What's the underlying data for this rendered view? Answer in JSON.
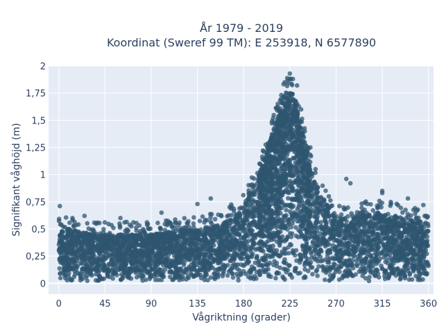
{
  "chart_data": {
    "type": "scatter",
    "title_line1": "År 1979 - 2019",
    "title_line2": "Koordinat (Sweref 99 TM): E 253918, N 6577890",
    "xlabel": "Vågriktning (grader)",
    "ylabel": "Signifikant våghöjd (m)",
    "xlim": [
      -10,
      365
    ],
    "ylim": [
      -0.1,
      2
    ],
    "x_ticks": [
      0,
      45,
      90,
      135,
      180,
      225,
      270,
      315,
      360
    ],
    "x_tick_labels": [
      "0",
      "45",
      "90",
      "135",
      "180",
      "225",
      "270",
      "315",
      "360"
    ],
    "y_ticks": [
      0,
      0.25,
      0.5,
      0.75,
      1,
      1.25,
      1.5,
      1.75,
      2
    ],
    "y_tick_labels": [
      "0",
      "0,25",
      "0,5",
      "0,75",
      "1",
      "1,25",
      "1,5",
      "1,75",
      "2"
    ],
    "grid": true,
    "marker_color": "#2f5670",
    "plot_background": "#e5ecf6",
    "envelope": {
      "description_values": "approximate upper envelope of dense point cloud (direction deg, wave height m)",
      "x": [
        0,
        45,
        90,
        135,
        160,
        180,
        195,
        210,
        220,
        225,
        230,
        240,
        250,
        270,
        315,
        360
      ],
      "y_upper": [
        0.5,
        0.45,
        0.45,
        0.5,
        0.55,
        0.7,
        1.0,
        1.45,
        1.75,
        1.8,
        1.7,
        1.3,
        0.9,
        0.6,
        0.65,
        0.55
      ]
    },
    "outliers": [
      {
        "x": 1,
        "y": 0.71
      },
      {
        "x": 225,
        "y": 1.93
      },
      {
        "x": 220,
        "y": 1.85
      },
      {
        "x": 228,
        "y": 1.88
      },
      {
        "x": 232,
        "y": 1.82
      },
      {
        "x": 215,
        "y": 1.58
      },
      {
        "x": 236,
        "y": 1.6
      },
      {
        "x": 203,
        "y": 1.25
      },
      {
        "x": 245,
        "y": 1.25
      },
      {
        "x": 250,
        "y": 1.05
      },
      {
        "x": 252,
        "y": 0.88
      },
      {
        "x": 263,
        "y": 0.8
      },
      {
        "x": 280,
        "y": 0.96
      },
      {
        "x": 284,
        "y": 0.92
      },
      {
        "x": 315,
        "y": 0.85
      },
      {
        "x": 315,
        "y": 0.83
      },
      {
        "x": 148,
        "y": 0.78
      },
      {
        "x": 135,
        "y": 0.73
      },
      {
        "x": 100,
        "y": 0.65
      },
      {
        "x": 60,
        "y": 0.6
      },
      {
        "x": 25,
        "y": 0.62
      },
      {
        "x": 340,
        "y": 0.78
      },
      {
        "x": 355,
        "y": 0.72
      }
    ]
  }
}
